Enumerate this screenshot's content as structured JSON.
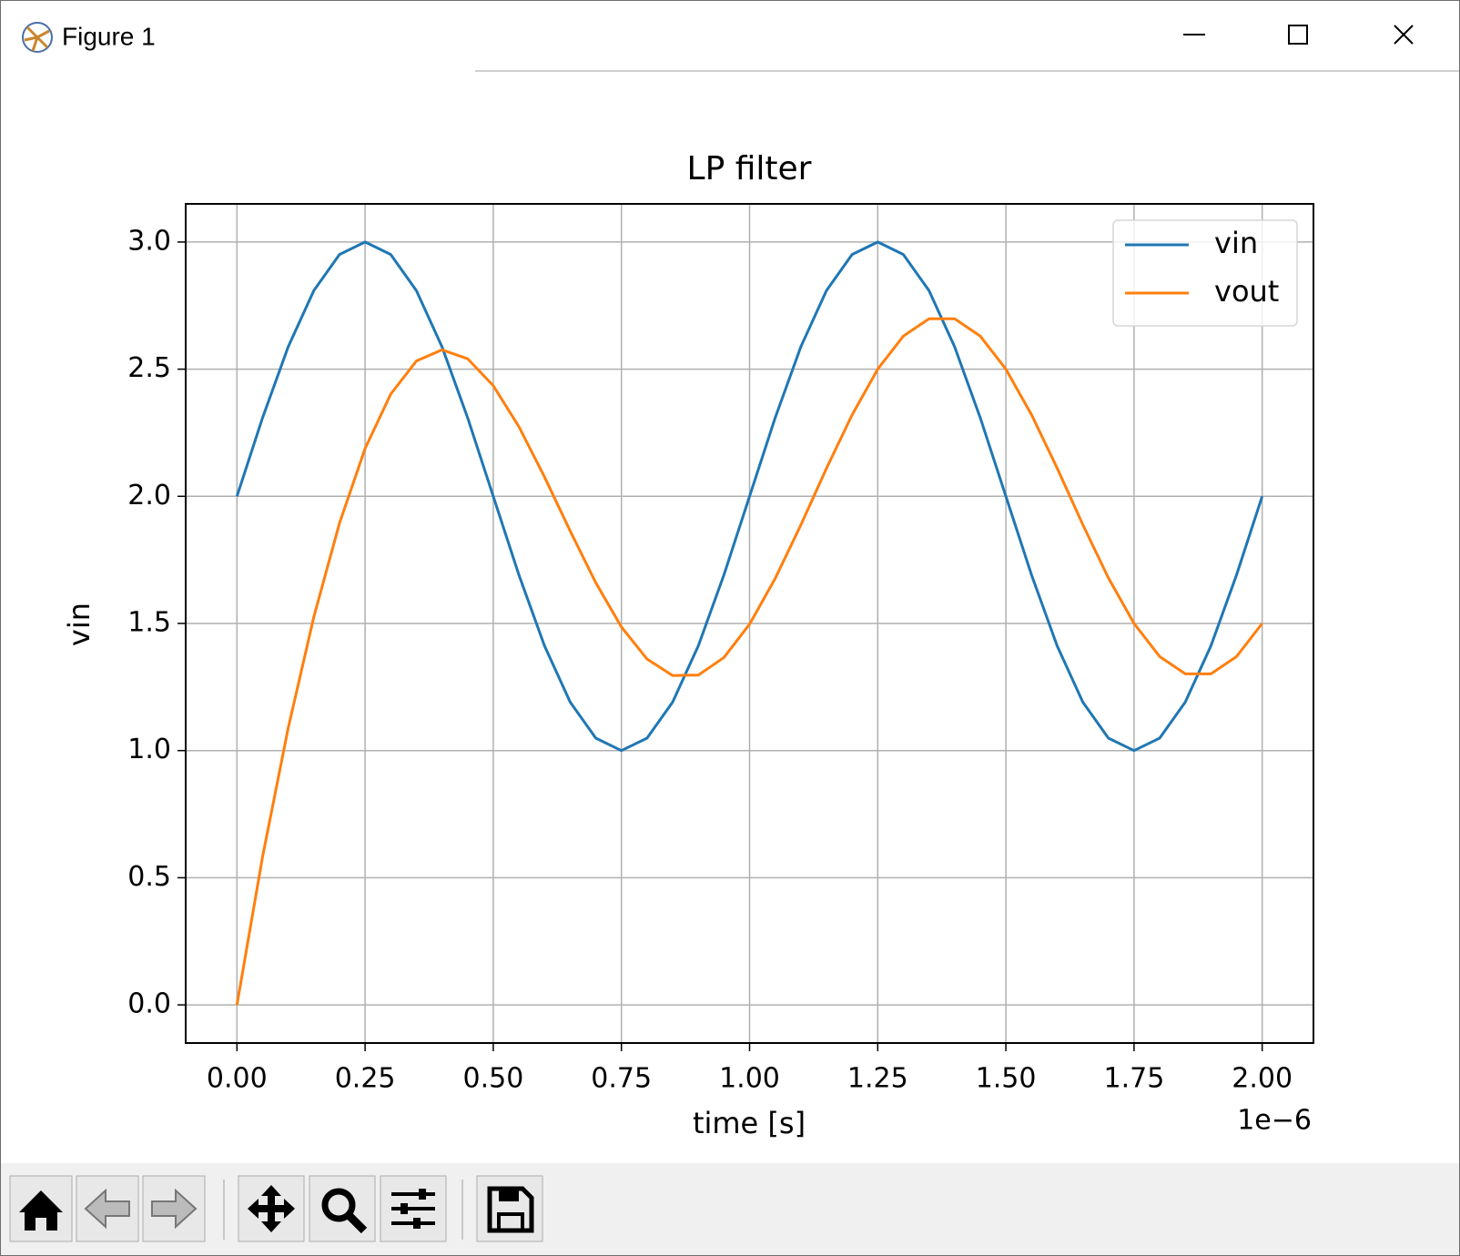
{
  "window": {
    "title": "Figure 1"
  },
  "chart_data": {
    "type": "line",
    "title": "LP filter",
    "xlabel": "time [s]",
    "ylabel": "vin",
    "x_offset_label": "1e−6",
    "x": [
      0,
      0.05,
      0.1,
      0.15,
      0.2,
      0.25,
      0.3,
      0.35,
      0.4,
      0.45,
      0.5,
      0.55,
      0.6,
      0.65,
      0.7,
      0.75,
      0.8,
      0.85,
      0.9,
      0.95,
      1,
      1.05,
      1.1,
      1.15,
      1.2,
      1.25,
      1.3,
      1.35,
      1.4,
      1.45,
      1.5,
      1.55,
      1.6,
      1.65,
      1.7,
      1.75,
      1.8,
      1.85,
      1.9,
      1.95,
      2
    ],
    "series": [
      {
        "name": "vin",
        "color": "#1f77b4",
        "values": [
          2,
          2.309,
          2.588,
          2.809,
          2.951,
          3,
          2.951,
          2.809,
          2.588,
          2.309,
          2,
          1.691,
          1.412,
          1.191,
          1.049,
          1,
          1.049,
          1.191,
          1.412,
          1.691,
          2,
          2.309,
          2.588,
          2.809,
          2.951,
          3,
          2.951,
          2.809,
          2.588,
          2.309,
          2,
          1.691,
          1.412,
          1.191,
          1.049,
          1,
          1.049,
          1.191,
          1.412,
          1.691,
          2
        ]
      },
      {
        "name": "vout",
        "color": "#ff7f0e",
        "values": [
          0,
          0.583,
          1.089,
          1.526,
          1.894,
          2.188,
          2.402,
          2.532,
          2.576,
          2.541,
          2.435,
          2.274,
          2.076,
          1.864,
          1.66,
          1.486,
          1.36,
          1.295,
          1.297,
          1.366,
          1.497,
          1.677,
          1.887,
          2.11,
          2.32,
          2.5,
          2.63,
          2.698,
          2.698,
          2.63,
          2.5,
          2.321,
          2.111,
          1.889,
          1.679,
          1.5,
          1.37,
          1.302,
          1.302,
          1.37,
          1.5
        ]
      }
    ],
    "xlim": [
      -0.1,
      2.1
    ],
    "xticks": [
      {
        "value": 0,
        "label": "0.00"
      },
      {
        "value": 0.25,
        "label": "0.25"
      },
      {
        "value": 0.5,
        "label": "0.50"
      },
      {
        "value": 0.75,
        "label": "0.75"
      },
      {
        "value": 1,
        "label": "1.00"
      },
      {
        "value": 1.25,
        "label": "1.25"
      },
      {
        "value": 1.5,
        "label": "1.50"
      },
      {
        "value": 1.75,
        "label": "1.75"
      },
      {
        "value": 2,
        "label": "2.00"
      }
    ],
    "ylim": [
      -0.15,
      3.15
    ],
    "yticks": [
      {
        "value": 0,
        "label": "0.0"
      },
      0.5,
      {
        "value": 1,
        "label": "1.0"
      },
      1.5,
      {
        "value": 2,
        "label": "2.0"
      },
      2.5,
      {
        "value": 3,
        "label": "3.0"
      }
    ],
    "grid": true,
    "legend": "upper right"
  }
}
